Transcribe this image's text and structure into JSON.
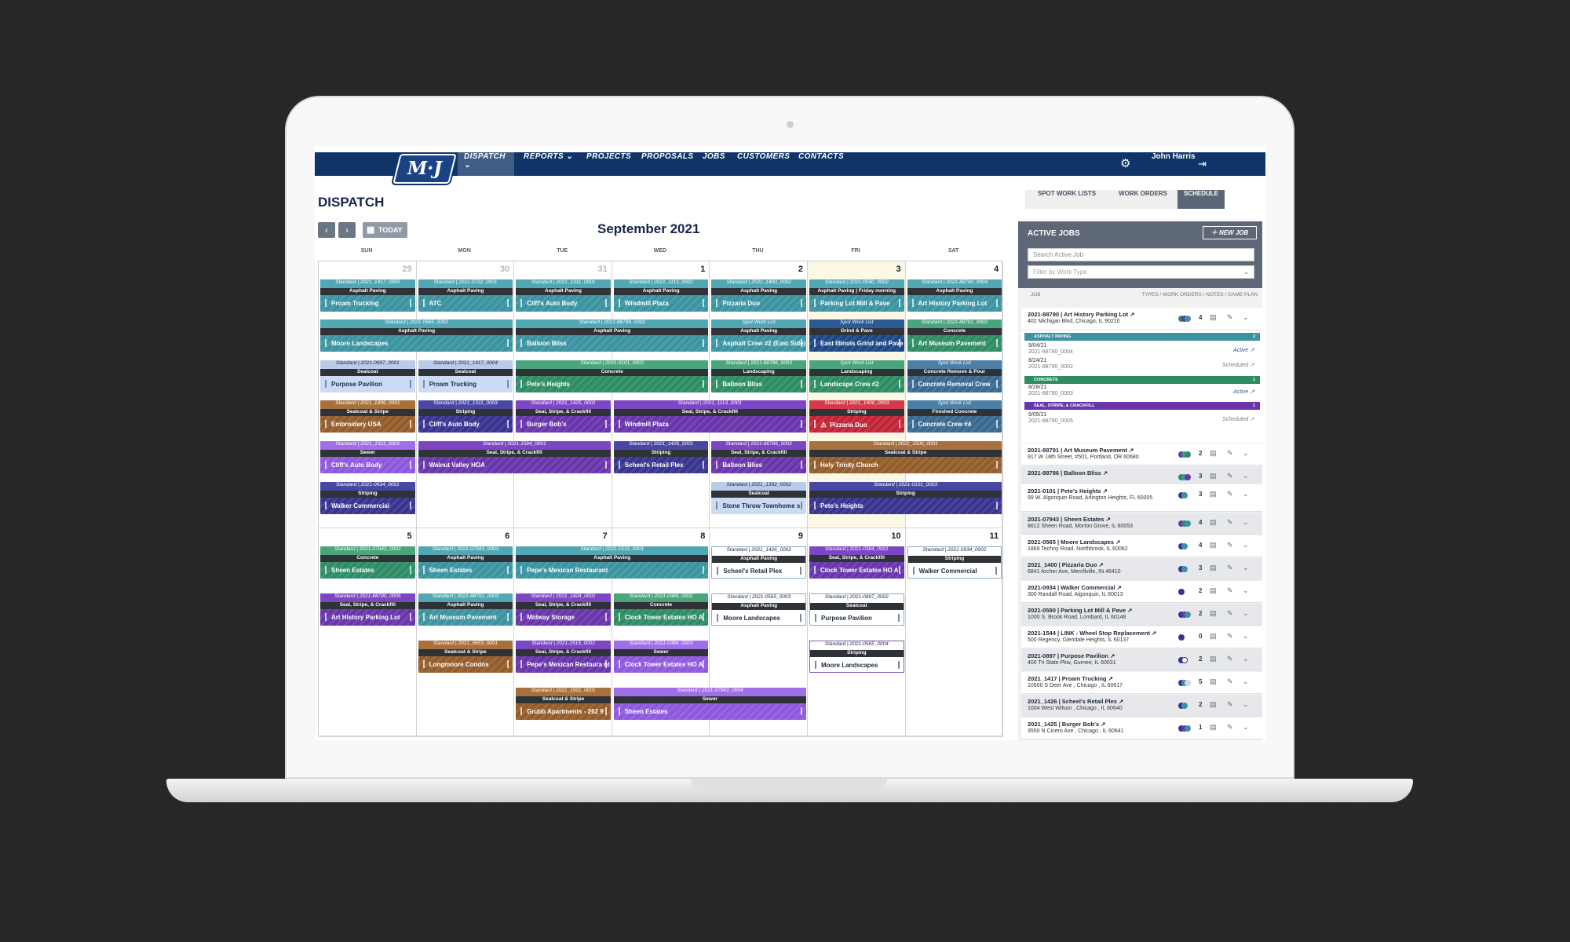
{
  "nav": {
    "logo": "M·J",
    "items": [
      "DISPATCH",
      "REPORTS",
      "PROJECTS",
      "PROPOSALS",
      "JOBS",
      "CUSTOMERS",
      "CONTACTS"
    ],
    "user": "John Harris"
  },
  "page": {
    "title": "DISPATCH",
    "today": "TODAY",
    "month": "September 2021",
    "prev_icon": "‹",
    "next_icon": "›",
    "calendar_icon": "calendar-icon"
  },
  "weekdays": [
    "SUN",
    "MON",
    "TUE",
    "WED",
    "THU",
    "FRI",
    "SAT"
  ],
  "week1": {
    "days": [
      "29",
      "30",
      "31",
      "1",
      "2",
      "3",
      "4"
    ]
  },
  "week2": {
    "days": [
      "5",
      "6",
      "7",
      "8",
      "9",
      "10",
      "11"
    ]
  },
  "events": {
    "w1r1": [
      {
        "h": "Standard | 2021_1417_0005",
        "t": "Asphalt Paving",
        "n": "Proam Trucking",
        "c": "teal"
      },
      {
        "h": "Standard | 2021-0722_0001",
        "t": "Asphalt Paving",
        "n": "ATC",
        "c": "teal"
      },
      {
        "h": "Standard | 2021_1311_0001",
        "t": "Asphalt Paving",
        "n": "Cliff's Auto Body",
        "c": "teal"
      },
      {
        "h": "Standard | 2021_1113_0002",
        "t": "Asphalt Paving",
        "n": "Windmill Plaza",
        "c": "teal"
      },
      {
        "h": "Standard | 2021_1400_0002",
        "t": "Asphalt Paving",
        "n": "Pizzaria Duo",
        "c": "teal"
      },
      {
        "h": "Standard | 2021-0590_0002",
        "t": "Asphalt Paving | Friday morning",
        "n": "Parking Lot Mill & Pave",
        "c": "teal"
      },
      {
        "h": "Standard | 2021-88790_0004",
        "t": "Asphalt Paving",
        "n": "Art History Parking Lot",
        "c": "teal"
      }
    ],
    "w1r2": [
      {
        "h": "Standard | 2021-0565_0002",
        "t": "Asphalt Paving",
        "n": "Moore Landscapes",
        "c": "teal"
      },
      {
        "h": "Standard | 2021-88786_0002",
        "t": "Asphalt Paving",
        "n": "Balloon Bliss",
        "c": "teal"
      },
      {
        "h": "Spot Work List",
        "t": "Asphalt Paving",
        "n": "Asphalt Crew #2 (East Side)",
        "c": "teal"
      },
      {
        "h": "Spot Work List",
        "t": "Grind & Pave",
        "n": "East Illinois Grind and Pave",
        "c": "navy"
      },
      {
        "h": "Standard | 2021-88791_0002",
        "t": "Concrete",
        "n": "Art Museum Pavement",
        "c": "green"
      }
    ],
    "w1r3": [
      {
        "h": "Standard | 2021-0897_0001",
        "t": "Sealcoat",
        "n": "Purpose Pavilion",
        "c": "light"
      },
      {
        "h": "Standard | 2021_1417_0004",
        "t": "Sealcoat",
        "n": "Proam Trucking",
        "c": "light"
      },
      {
        "h": "Standard | 2021-0101_0002",
        "t": "Concrete",
        "n": "Pete's Heights",
        "c": "green"
      },
      {
        "h": "Standard | 2021-88786_0003",
        "t": "Landscaping",
        "n": "Balloon Bliss",
        "c": "green"
      },
      {
        "h": "Spot Work List",
        "t": "Landscaping",
        "n": "Landscape Crew #2",
        "c": "green"
      },
      {
        "h": "Spot Work List",
        "t": "Concrete Remove & Pour",
        "n": "Concrete Removal Crew",
        "c": "steel"
      }
    ],
    "w1r4": [
      {
        "h": "Standard | 2021_1499_0001",
        "t": "Sealcoat & Stripe",
        "n": "Embroidery USA",
        "c": "brown"
      },
      {
        "h": "Standard | 2021_1311_0003",
        "t": "Striping",
        "n": "Cliff's Auto Body",
        "c": "indigo"
      },
      {
        "h": "Standard | 2021_1425_0001",
        "t": "Seal, Stripe, & Crackfill",
        "n": "Burger Bob's",
        "c": "purple"
      },
      {
        "h": "Standard | 2021_1113_0001",
        "t": "Seal, Stripe, & Crackfill",
        "n": "Windmill Plaza",
        "c": "purple"
      },
      {
        "h": "Standard | 2021_1400_0003",
        "t": "Striping",
        "n": "Pizzaria Duo",
        "c": "red"
      },
      {
        "h": "Spot Work List",
        "t": "Finished Concrete",
        "n": "Concrete Crew #4",
        "c": "steel"
      }
    ],
    "w1r5": [
      {
        "h": "Standard | 2021_1311_0002",
        "t": "Sewer",
        "n": "Cliff's Auto Body",
        "c": "lav"
      },
      {
        "h": "Standard | 2021-1584_0001",
        "t": "Seal, Stripe, & Crackfill",
        "n": "Walnut Valley HOA",
        "c": "purple"
      },
      {
        "h": "Standard | 2021_1426_0001",
        "t": "Striping",
        "n": "Scheel's Retail Plex",
        "c": "indigo"
      },
      {
        "h": "Standard | 2021-88786_0002",
        "t": "Seal, Stripe, & Crackfill",
        "n": "Balloon Bliss",
        "c": "purple"
      },
      {
        "h": "Standard | 2021_1500_0001",
        "t": "Sealcoat & Stripe",
        "n": "Holy Trinity Church",
        "c": "brown"
      }
    ],
    "w1r6": [
      {
        "h": "Standard | 2021-0934_0001",
        "t": "Striping",
        "n": "Walker Commercial",
        "c": "indigo"
      },
      {
        "h": "Standard | 2021_1392_0002",
        "t": "Sealcoat",
        "n": "Stone Throw Townhome s",
        "c": "light"
      },
      {
        "h": "Standard | 2021-0101_0003",
        "t": "Striping",
        "n": "Pete's Heights",
        "c": "indigo"
      }
    ],
    "w2r1": [
      {
        "h": "Standard | 2021-07943_0002",
        "t": "Concrete",
        "n": "Sheen Estates",
        "c": "green"
      },
      {
        "h": "Standard | 2021-07943_0003",
        "t": "Asphalt Paving",
        "n": "Sheen Estates",
        "c": "teal"
      },
      {
        "h": "Standard | 2021-1515_0001",
        "t": "Asphalt Paving",
        "n": "Pepe's Mexican Restaurant",
        "c": "teal"
      },
      {
        "h": "Standard | 2021_1426_0002",
        "t": "Asphalt Paving",
        "n": "Scheel's Retail Plex",
        "c": "white"
      },
      {
        "h": "Standard | 2021-0384_0001",
        "t": "Seal, Stripe, & Crackfill",
        "n": "Clock Tower Estates HO A",
        "c": "purple"
      },
      {
        "h": "Standard | 2021-0934_0002",
        "t": "Striping",
        "n": "Walker Commercial",
        "c": "white"
      }
    ],
    "w2r2": [
      {
        "h": "Standard | 2021-88790_0005",
        "t": "Seal, Stripe, & Crackfill",
        "n": "Art History Parking Lot",
        "c": "purple"
      },
      {
        "h": "Standard | 2021-88791_0003",
        "t": "Asphalt Paving",
        "n": "Art Museum Pavement",
        "c": "teal"
      },
      {
        "h": "Standard | 2021_1424_0001",
        "t": "Seal, Stripe, & Crackfill",
        "n": "Midway Storage",
        "c": "purple"
      },
      {
        "h": "Standard | 2021-0384_0002",
        "t": "Concrete",
        "n": "Clock Tower Estates HO A",
        "c": "green"
      },
      {
        "h": "Standard | 2021-0565_0003",
        "t": "Asphalt Paving",
        "n": "Moore Landscapes",
        "c": "white"
      },
      {
        "h": "Standard | 2021-0897_0002",
        "t": "Sealcoat",
        "n": "Purpose Pavilion",
        "c": "white"
      }
    ],
    "w2r3": [
      {
        "h": "Standard | 2021_0653_0001",
        "t": "Sealcoat & Stripe",
        "n": "Longmoore Condos",
        "c": "brown"
      },
      {
        "h": "Standard | 2021-1515_0002",
        "t": "Seal, Stripe, & Crackfill",
        "n": "Pepe's Mexican Restaura nt",
        "c": "purple"
      },
      {
        "h": "Standard | 2021-0384_0003",
        "t": "Sewer",
        "n": "Clock Tower Estates HO A",
        "c": "lav"
      },
      {
        "h": "Standard | 2021-0565_0004",
        "t": "Striping",
        "n": "Moore Landscapes",
        "c": "white"
      }
    ],
    "w2r4": [
      {
        "h": "Standard | 2021_1501_0001",
        "t": "Sealcoat & Stripe",
        "n": "Grubb Apartments - 262 9",
        "c": "brown"
      },
      {
        "h": "Standard | 2021-07943_0004",
        "t": "Sewer",
        "n": "Sheen Estates",
        "c": "lav"
      }
    ]
  },
  "tabs": [
    "SPOT WORK LISTS",
    "WORK ORDERS",
    "SCHEDULE"
  ],
  "active_jobs": {
    "title": "ACTIVE JOBS",
    "new_job": "NEW JOB",
    "search_placeholder": "Search Active Job",
    "filter_placeholder": "Filter by Work Type",
    "col_job": "JOB",
    "col_right": "TYPES / WORK ORDERS / NOTES / GAME PLAN",
    "first": {
      "name": "2021-88790 | Art History Parking Lot ↗",
      "addr": "402 Michigan Blvd, Chicago, IL 90210",
      "count": "4",
      "bands": [
        {
          "label": "ASPHALT PAVING",
          "n": "2",
          "color": "#3b93a1"
        },
        {
          "label": "CONCRETE",
          "n": "1",
          "color": "#2e8c64"
        },
        {
          "label": "SEAL, STRIPE, & CRACKFILL",
          "n": "1",
          "color": "#6835ab"
        }
      ],
      "subs": [
        {
          "d": "9/04/21",
          "id": "2021-88790_0004",
          "s": "Active ↗"
        },
        {
          "d": "8/24/21",
          "id": "2021-88790_0002",
          "s": "Scheduled ↗"
        },
        {
          "d": "8/28/21",
          "id": "2021-88790_0003",
          "s": "Active ↗"
        },
        {
          "d": "9/05/21",
          "id": "2021-88790_0005",
          "s": "Scheduled ↗"
        }
      ]
    },
    "jobs": [
      {
        "name": "2021-88791 | Art Museum Pavement ↗",
        "addr": "917 W 18th Street, #501, Portland, OR 60680",
        "count": "2"
      },
      {
        "name": "2021-88786 | Balloon Bliss ↗",
        "addr": "",
        "count": "3"
      },
      {
        "name": "2021-0101 | Pete's Heights ↗",
        "addr": "99 W. Algonquin Road, Arlington Heights, FL 60005",
        "count": "3"
      },
      {
        "name": "2021-07943 | Sheen Estates ↗",
        "addr": "8612 Sheen Road, Morton Grove, IL 60053",
        "count": "4"
      },
      {
        "name": "2021-0565 | Moore Landscapes ↗",
        "addr": "1869 Techny Road, Northbrook, IL 60062",
        "count": "4"
      },
      {
        "name": "2021_1400 | Pizzaria Duo ↗",
        "addr": "6841 Archer Ave, Merrillville, IN 46410",
        "count": "3"
      },
      {
        "name": "2021-0934 | Walker Commercial ↗",
        "addr": "300 Randall Road, Algonquin, IL 60013",
        "count": "2"
      },
      {
        "name": "2021-0590 | Parking Lot Mill & Pave ↗",
        "addr": "1000 S. Brook Road, Lombard, IL 60148",
        "count": "2"
      },
      {
        "name": "2021-1544 | LINK - Wheel Stop Replacement ↗",
        "addr": "500 Regency, Glendale Heights, IL 60137",
        "count": "0"
      },
      {
        "name": "2021-0897 | Purpose Pavilion ↗",
        "addr": "400 Tri State Pkw, Gurnee, IL 60031",
        "count": "2"
      },
      {
        "name": "2021_1417 | Proam Trucking ↗",
        "addr": "10500 S Deer Ave , Chicago , IL 60617",
        "count": "5"
      },
      {
        "name": "2021_1426 | Scheel's Retail Plex ↗",
        "addr": "1004 West Wilson , Chicago , IL 60640",
        "count": "2"
      },
      {
        "name": "2021_1425 | Burger Bob's ↗",
        "addr": "3550 N Cicero Ave , Chicago , IL 60641",
        "count": "1"
      }
    ]
  },
  "colors": {
    "nav": "#0f3568",
    "teal": "#3b93a1",
    "green": "#2e8c64",
    "purple": "#6835ab",
    "indigo": "#373490",
    "brown": "#935c2a",
    "red": "#c22436"
  }
}
